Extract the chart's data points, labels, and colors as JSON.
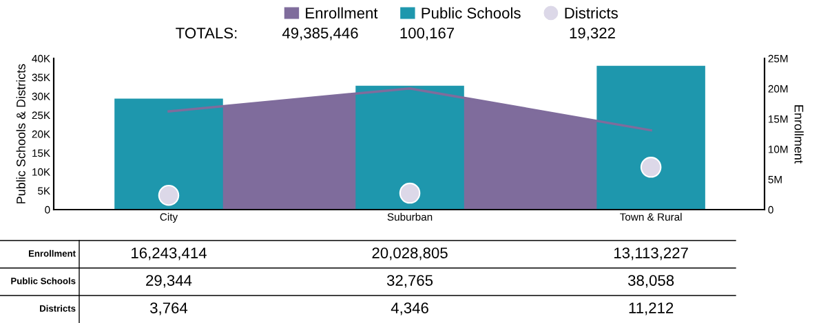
{
  "chart_data": {
    "type": "bar",
    "categories": [
      "City",
      "Suburban",
      "Town & Rural"
    ],
    "ylabel": "Public Schools & Districts",
    "y2label": "Enrollment",
    "series": [
      {
        "name": "Enrollment",
        "type": "area",
        "axis": "y2",
        "color": "#7f6c9c",
        "values": [
          16243414,
          20028805,
          13113227
        ],
        "value_labels": [
          "16,243,414",
          "20,028,805",
          "13,113,227"
        ]
      },
      {
        "name": "Public Schools",
        "color": "#1e97ad",
        "values": [
          29344,
          32765,
          38058
        ],
        "value_labels": [
          "29,344",
          "32,765",
          "38,058"
        ]
      },
      {
        "name": "Districts",
        "type": "scatter",
        "color": "#dcd8e8",
        "marker": "circle",
        "values": [
          3764,
          4346,
          11212
        ],
        "value_labels": [
          "3,764",
          "4,346",
          "11,212"
        ]
      }
    ],
    "ylim": [
      0,
      40000
    ],
    "yticks": [
      0,
      {
        "value": 5000,
        "label": "5K"
      },
      {
        "value": 10000,
        "label": "10K"
      },
      {
        "value": 15000,
        "label": "15K"
      },
      {
        "value": 20000,
        "label": "20K"
      },
      {
        "value": 25000,
        "label": "25K"
      },
      {
        "value": 30000,
        "label": "30K"
      },
      {
        "value": 35000,
        "label": "35K"
      },
      {
        "value": 40000,
        "label": "40K"
      }
    ],
    "y2lim": [
      0,
      25000000
    ],
    "y2ticks": [
      0,
      {
        "value": 5000000,
        "label": "5M"
      },
      {
        "value": 10000000,
        "label": "10M"
      },
      {
        "value": 15000000,
        "label": "15M"
      },
      {
        "value": 20000000,
        "label": "20M"
      },
      {
        "value": 25000000,
        "label": "25M"
      }
    ],
    "annotations": [
      "TOTALS:",
      "49,385,446",
      "100,167",
      "19,322"
    ],
    "legend": "top",
    "grid": false
  }
}
